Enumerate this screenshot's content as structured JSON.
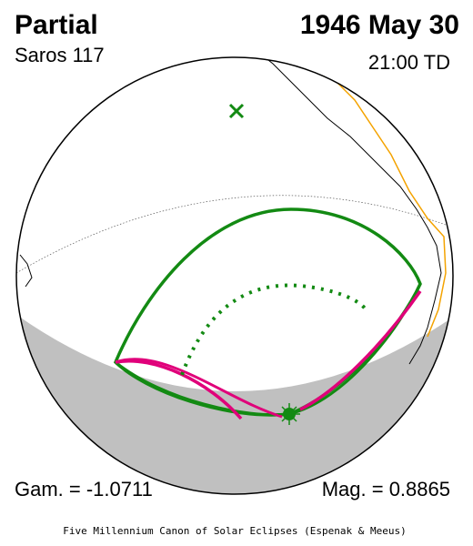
{
  "header": {
    "type": "Partial",
    "saros": "Saros 117",
    "date": "1946 May 30",
    "time": "21:00 TD"
  },
  "footer": {
    "gamma": "Gam. = -1.0711",
    "magnitude": "Mag. = 0.8865",
    "credit": "Five Millennium Canon of Solar Eclipses (Espenak & Meeus)"
  }
}
